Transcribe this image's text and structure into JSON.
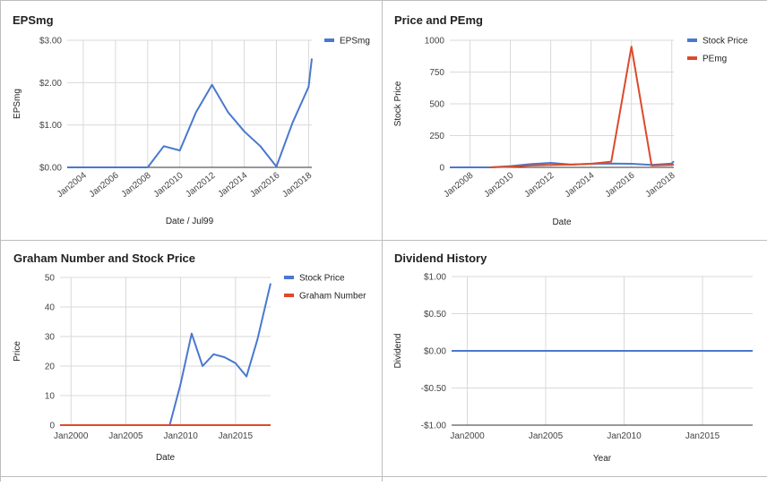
{
  "chart_data": [
    {
      "type": "line",
      "title": "EPSmg",
      "xlabel": "Date / Jul99",
      "ylabel": "EPSmg",
      "xlim": [
        2003,
        2018.2
      ],
      "ylim": [
        0,
        3
      ],
      "x_ticks": [
        2004,
        2006,
        2008,
        2010,
        2012,
        2014,
        2016,
        2018
      ],
      "x_tick_labels": [
        "Jan2004",
        "Jan2006",
        "Jan2008",
        "Jan2010",
        "Jan2012",
        "Jan2014",
        "Jan2016",
        "Jan2018"
      ],
      "y_ticks": [
        0,
        1,
        2,
        3
      ],
      "y_tick_labels": [
        "$0.00",
        "$1.00",
        "$2.00",
        "$3.00"
      ],
      "grid": true,
      "legend_position": "right",
      "series": [
        {
          "name": "EPSmg",
          "color": "#4a78cf",
          "x": [
            2003,
            2004,
            2005,
            2006,
            2007,
            2008,
            2009,
            2010,
            2011,
            2012,
            2013,
            2014,
            2015,
            2016,
            2017,
            2018,
            2018.2
          ],
          "values": [
            0,
            0,
            0,
            0,
            0,
            0,
            0.5,
            0.4,
            1.3,
            1.95,
            1.3,
            0.85,
            0.5,
            0.02,
            1.05,
            1.9,
            2.57
          ]
        }
      ]
    },
    {
      "type": "line",
      "title": "Price and PEmg",
      "xlabel": "Date",
      "ylabel": "Stock Price",
      "xlim": [
        2007,
        2018.1
      ],
      "ylim": [
        0,
        1000
      ],
      "x_ticks": [
        2008,
        2010,
        2012,
        2014,
        2016,
        2018
      ],
      "x_tick_labels": [
        "Jan2008",
        "Jan2010",
        "Jan2012",
        "Jan2014",
        "Jan2016",
        "Jan2018"
      ],
      "y_ticks": [
        0,
        250,
        500,
        750,
        1000
      ],
      "y_tick_labels": [
        "0",
        "250",
        "500",
        "750",
        "1000"
      ],
      "grid": true,
      "legend_position": "right",
      "series": [
        {
          "name": "Stock Price",
          "color": "#4a78cf",
          "x": [
            2007,
            2008,
            2009,
            2010,
            2011,
            2012,
            2013,
            2014,
            2015,
            2016,
            2017,
            2018,
            2018.1
          ],
          "values": [
            0,
            0,
            0,
            10,
            25,
            35,
            22,
            28,
            30,
            28,
            20,
            30,
            48
          ]
        },
        {
          "name": "PEmg",
          "color": "#dc4a2a",
          "x": [
            2009,
            2010,
            2011,
            2012,
            2013,
            2014,
            2015,
            2016,
            2017,
            2018,
            2018.1
          ],
          "values": [
            0,
            5,
            15,
            20,
            22,
            28,
            45,
            950,
            15,
            20,
            22
          ]
        }
      ]
    },
    {
      "type": "line",
      "title": "Graham Number and Stock Price",
      "xlabel": "Date",
      "ylabel": "Price",
      "xlim": [
        1999,
        2018.2
      ],
      "ylim": [
        0,
        50
      ],
      "x_ticks": [
        2000,
        2005,
        2010,
        2015
      ],
      "x_tick_labels": [
        "Jan2000",
        "Jan2005",
        "Jan2010",
        "Jan2015"
      ],
      "y_ticks": [
        0,
        10,
        20,
        30,
        40,
        50
      ],
      "y_tick_labels": [
        "0",
        "10",
        "20",
        "30",
        "40",
        "50"
      ],
      "grid": true,
      "legend_position": "right",
      "series": [
        {
          "name": "Stock Price",
          "color": "#4a78cf",
          "x": [
            1999,
            2008,
            2009,
            2010,
            2011,
            2012,
            2013,
            2014,
            2015,
            2016,
            2017,
            2018.2
          ],
          "values": [
            0,
            0,
            0,
            14,
            31,
            20,
            24,
            23,
            21,
            16.5,
            29,
            48
          ]
        },
        {
          "name": "Graham Number",
          "color": "#dc4a2a",
          "x": [
            1999,
            2018.2
          ],
          "values": [
            0,
            0
          ]
        }
      ]
    },
    {
      "type": "line",
      "title": "Dividend History",
      "xlabel": "Year",
      "ylabel": "Dividend",
      "xlim": [
        1999,
        2018.2
      ],
      "ylim": [
        -1,
        1
      ],
      "x_ticks": [
        2000,
        2005,
        2010,
        2015
      ],
      "x_tick_labels": [
        "Jan2000",
        "Jan2005",
        "Jan2010",
        "Jan2015"
      ],
      "y_ticks": [
        -1,
        -0.5,
        0,
        0.5,
        1
      ],
      "y_tick_labels": [
        "-$1.00",
        "-$0.50",
        "$0.00",
        "$0.50",
        "$1.00"
      ],
      "grid": true,
      "legend_position": "none",
      "series": [
        {
          "color": "#4a78cf",
          "x": [
            1999,
            2018.2
          ],
          "values": [
            0,
            0
          ]
        }
      ]
    }
  ]
}
